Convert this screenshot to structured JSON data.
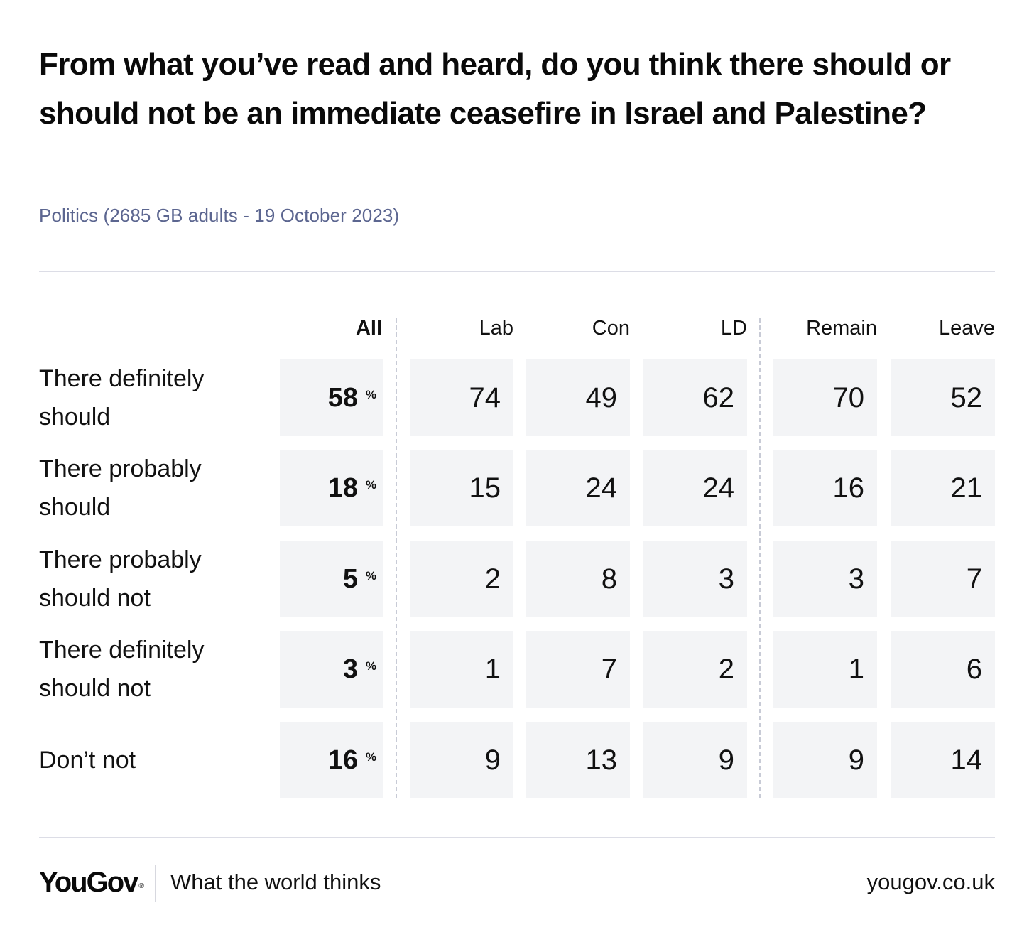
{
  "chart_data": {
    "type": "table",
    "title": "From what you’ve read and heard, do you think there should or should not be an immediate ceasefire in Israel and Palestine?",
    "subtitle": "Politics (2685 GB adults - 19 October 2023)",
    "columns": [
      "All",
      "Lab",
      "Con",
      "LD",
      "Remain",
      "Leave"
    ],
    "percent_symbol": "%",
    "rows": [
      {
        "label_line1": "There definitely",
        "label_line2": "should",
        "values": [
          "58",
          "74",
          "49",
          "62",
          "70",
          "52"
        ]
      },
      {
        "label_line1": "There probably",
        "label_line2": "should",
        "values": [
          "18",
          "15",
          "24",
          "24",
          "16",
          "21"
        ]
      },
      {
        "label_line1": "There probably",
        "label_line2": "should not",
        "values": [
          "5",
          "2",
          "8",
          "3",
          "3",
          "7"
        ]
      },
      {
        "label_line1": "There definitely",
        "label_line2": "should not",
        "values": [
          "3",
          "1",
          "7",
          "2",
          "1",
          "6"
        ]
      },
      {
        "label_line1": "Don’t not",
        "label_line2": "",
        "values": [
          "16",
          "9",
          "13",
          "9",
          "9",
          "14"
        ]
      }
    ]
  },
  "footer": {
    "logo_text": "YouGov",
    "logo_mark": "®",
    "tagline": "What the world thinks",
    "url": "yougov.co.uk"
  },
  "colors": {
    "subtitle": "#5c6690",
    "cell_background": "#f3f4f6",
    "rule": "#dcdde6"
  }
}
